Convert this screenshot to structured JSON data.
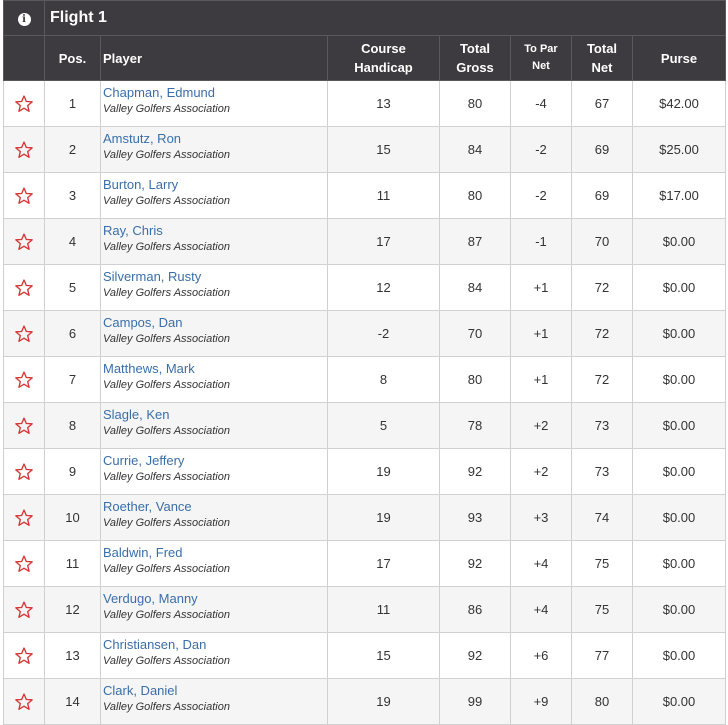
{
  "flight": {
    "title": "Flight 1"
  },
  "columns": {
    "pos": "Pos.",
    "player": "Player",
    "course_handicap_1": "Course",
    "course_handicap_2": "Handicap",
    "total_gross_1": "Total",
    "total_gross_2": "Gross",
    "to_par_net_1": "To Par",
    "to_par_net_2": "Net",
    "total_net_1": "Total",
    "total_net_2": "Net",
    "purse": "Purse"
  },
  "icons": {
    "info": "info-icon",
    "favorite": "star-outline-icon"
  },
  "colors": {
    "header_bg": "#3d3b3f",
    "under_par": "#d63333",
    "over_par": "#8a2be2",
    "link": "#3a6ea8"
  },
  "rows": [
    {
      "pos": "1",
      "name": "Chapman, Edmund",
      "assoc": "Valley Golfers Association",
      "hcp": "13",
      "gross": "80",
      "topar": "-4",
      "net": "67",
      "purse": "$42.00",
      "status": "under"
    },
    {
      "pos": "2",
      "name": "Amstutz, Ron",
      "assoc": "Valley Golfers Association",
      "hcp": "15",
      "gross": "84",
      "topar": "-2",
      "net": "69",
      "purse": "$25.00",
      "status": "under"
    },
    {
      "pos": "3",
      "name": "Burton, Larry",
      "assoc": "Valley Golfers Association",
      "hcp": "11",
      "gross": "80",
      "topar": "-2",
      "net": "69",
      "purse": "$17.00",
      "status": "under"
    },
    {
      "pos": "4",
      "name": "Ray, Chris",
      "assoc": "Valley Golfers Association",
      "hcp": "17",
      "gross": "87",
      "topar": "-1",
      "net": "70",
      "purse": "$0.00",
      "status": "under"
    },
    {
      "pos": "5",
      "name": "Silverman, Rusty",
      "assoc": "Valley Golfers Association",
      "hcp": "12",
      "gross": "84",
      "topar": "+1",
      "net": "72",
      "purse": "$0.00",
      "status": "over"
    },
    {
      "pos": "6",
      "name": "Campos, Dan",
      "assoc": "Valley Golfers Association",
      "hcp": "-2",
      "gross": "70",
      "topar": "+1",
      "net": "72",
      "purse": "$0.00",
      "status": "over"
    },
    {
      "pos": "7",
      "name": "Matthews, Mark",
      "assoc": "Valley Golfers Association",
      "hcp": "8",
      "gross": "80",
      "topar": "+1",
      "net": "72",
      "purse": "$0.00",
      "status": "over"
    },
    {
      "pos": "8",
      "name": "Slagle, Ken",
      "assoc": "Valley Golfers Association",
      "hcp": "5",
      "gross": "78",
      "topar": "+2",
      "net": "73",
      "purse": "$0.00",
      "status": "over"
    },
    {
      "pos": "9",
      "name": "Currie, Jeffery",
      "assoc": "Valley Golfers Association",
      "hcp": "19",
      "gross": "92",
      "topar": "+2",
      "net": "73",
      "purse": "$0.00",
      "status": "over"
    },
    {
      "pos": "10",
      "name": "Roether, Vance",
      "assoc": "Valley Golfers Association",
      "hcp": "19",
      "gross": "93",
      "topar": "+3",
      "net": "74",
      "purse": "$0.00",
      "status": "over"
    },
    {
      "pos": "11",
      "name": "Baldwin, Fred",
      "assoc": "Valley Golfers Association",
      "hcp": "17",
      "gross": "92",
      "topar": "+4",
      "net": "75",
      "purse": "$0.00",
      "status": "over"
    },
    {
      "pos": "12",
      "name": "Verdugo, Manny",
      "assoc": "Valley Golfers Association",
      "hcp": "11",
      "gross": "86",
      "topar": "+4",
      "net": "75",
      "purse": "$0.00",
      "status": "over"
    },
    {
      "pos": "13",
      "name": "Christiansen, Dan",
      "assoc": "Valley Golfers Association",
      "hcp": "15",
      "gross": "92",
      "topar": "+6",
      "net": "77",
      "purse": "$0.00",
      "status": "over"
    },
    {
      "pos": "14",
      "name": "Clark, Daniel",
      "assoc": "Valley Golfers Association",
      "hcp": "19",
      "gross": "99",
      "topar": "+9",
      "net": "80",
      "purse": "$0.00",
      "status": "over"
    }
  ]
}
